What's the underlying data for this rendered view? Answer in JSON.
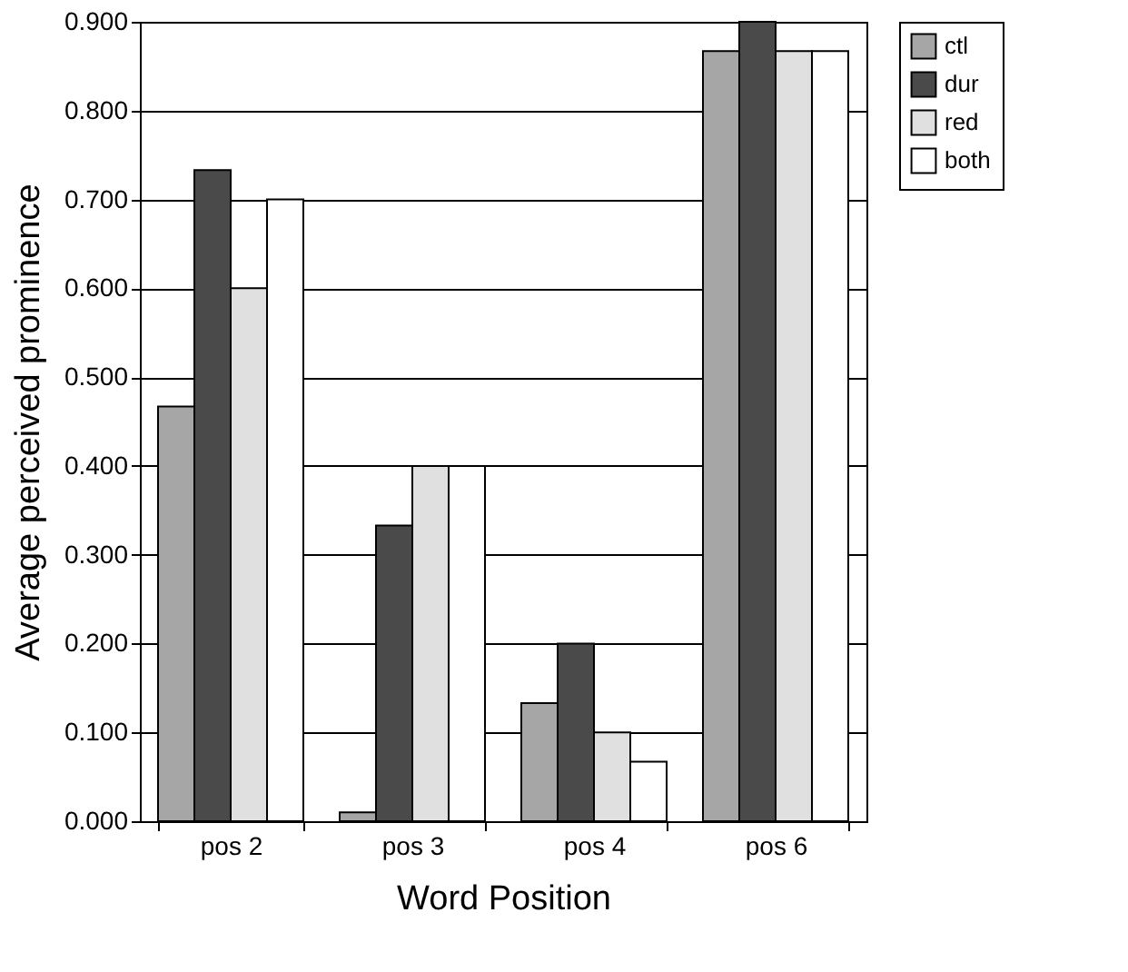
{
  "chart_data": {
    "type": "bar",
    "xlabel": "Word Position",
    "ylabel": "Average perceived prominence",
    "categories": [
      "pos 2",
      "pos 3",
      "pos 4",
      "pos 6"
    ],
    "series": [
      {
        "name": "ctl",
        "color": "#a6a6a6",
        "values": [
          0.467,
          0.01,
          0.133,
          0.867
        ]
      },
      {
        "name": "dur",
        "color": "#4a4a4a",
        "values": [
          0.733,
          0.333,
          0.2,
          0.9
        ]
      },
      {
        "name": "red",
        "color": "#e0e0e0",
        "values": [
          0.6,
          0.4,
          0.1,
          0.867
        ]
      },
      {
        "name": "both",
        "color": "#ffffff",
        "values": [
          0.7,
          0.4,
          0.067,
          0.867
        ]
      }
    ],
    "ylim": [
      0,
      0.9
    ],
    "yticks": [
      {
        "value": 0,
        "label": "0.000"
      },
      {
        "value": 0.1,
        "label": "0.100"
      },
      {
        "value": 0.2,
        "label": "0.200"
      },
      {
        "value": 0.3,
        "label": "0.300"
      },
      {
        "value": 0.4,
        "label": "0.400"
      },
      {
        "value": 0.5,
        "label": "0.500"
      },
      {
        "value": 0.6,
        "label": "0.600"
      },
      {
        "value": 0.7,
        "label": "0.700"
      },
      {
        "value": 0.8,
        "label": "0.800"
      },
      {
        "value": 0.9,
        "label": "0.900"
      }
    ],
    "grid": "y",
    "legend": "right"
  }
}
